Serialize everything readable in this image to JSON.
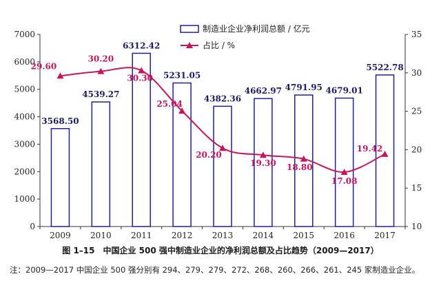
{
  "caption": "图 1–15　中国企业 500 强中制造业企业的净利润总额及占比趋势（2009—2017）",
  "note": "注：2009—2017 中国企业 500 强分别有 294、279、279、272、268、260、266、261、245 家制造业企业。",
  "colors": {
    "bar_stroke": "#1f1f99",
    "line": "#c8145a",
    "axis": "#333333"
  },
  "chart_data": {
    "type": "bar+line",
    "categories": [
      "2009",
      "2010",
      "2011",
      "2012",
      "2013",
      "2014",
      "2015",
      "2016",
      "2017"
    ],
    "series": [
      {
        "name": "制造业企业净利润总额 / 亿元",
        "type": "bar",
        "axis": "left",
        "values": [
          3568.5,
          4539.27,
          6312.42,
          5231.05,
          4382.36,
          4662.97,
          4791.95,
          4679.01,
          5522.78
        ],
        "labels": [
          "3568.50",
          "4539.27",
          "6312.42",
          "5231.05",
          "4382.36",
          "4662.97",
          "4791.95",
          "4679.01",
          "5522.78"
        ]
      },
      {
        "name": "占比 / %",
        "type": "line",
        "axis": "right",
        "values": [
          29.6,
          30.2,
          30.3,
          25.04,
          20.2,
          19.3,
          18.8,
          17.08,
          19.42
        ],
        "labels": [
          "29.60",
          "30.20",
          "30.30",
          "25.04",
          "20.20",
          "19.30",
          "18.80",
          "17.08",
          "19.42"
        ]
      }
    ],
    "y_left": {
      "min": 0,
      "max": 7000,
      "ticks": [
        "0",
        "1000",
        "2000",
        "3000",
        "4000",
        "5000",
        "6000",
        "7000"
      ]
    },
    "y_right": {
      "min": 10,
      "max": 35,
      "ticks": [
        "10",
        "15",
        "20",
        "25",
        "30",
        "35"
      ]
    },
    "legend_position": "top-center",
    "grid": false
  }
}
